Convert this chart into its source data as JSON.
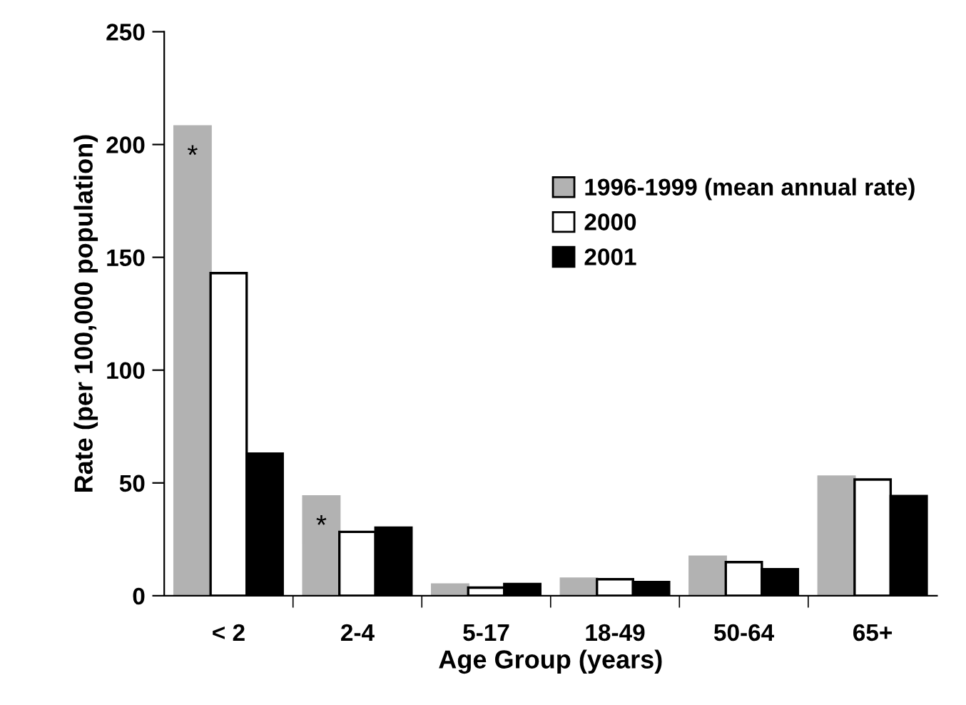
{
  "chart_data": {
    "type": "bar",
    "xlabel": "Age Group (years)",
    "ylabel": "Rate (per 100,000 population)",
    "categories": [
      "< 2",
      "2-4",
      "5-17",
      "18-49",
      "50-64",
      "65+"
    ],
    "series": [
      {
        "name": "1996-1999 (mean annual rate)",
        "color": "#b2b2b2",
        "values": [
          208,
          44,
          5,
          7.6,
          17.3,
          52.8
        ]
      },
      {
        "name": "2000",
        "color": "#ffffff",
        "values": [
          143,
          28.3,
          3.6,
          7.3,
          14.9,
          51.5
        ]
      },
      {
        "name": "2001",
        "color": "#000000",
        "values": [
          63,
          30.2,
          5.2,
          6.1,
          11.8,
          44.2
        ]
      }
    ],
    "annotations": [
      "*",
      "*"
    ],
    "ylim": [
      0,
      250
    ],
    "yticks": [
      0,
      50,
      100,
      150,
      200,
      250
    ],
    "grid": false,
    "legend": "top right"
  }
}
